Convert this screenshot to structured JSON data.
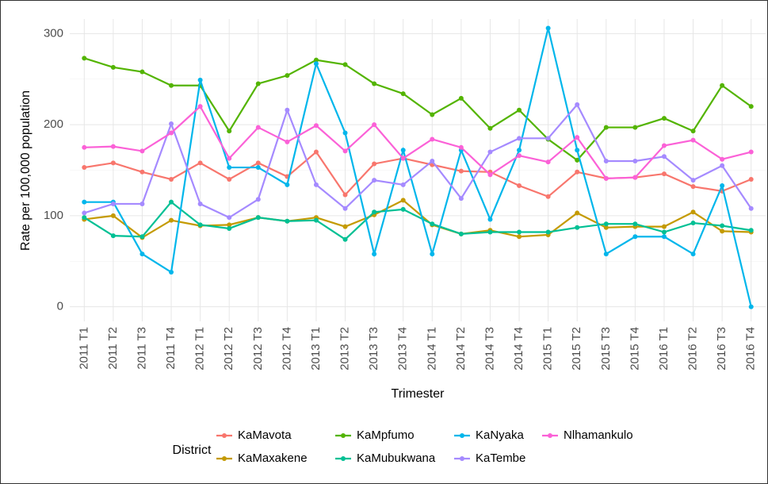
{
  "chart_data": {
    "type": "line",
    "x_label": "Trimester",
    "y_label": "Rate per 100,000 population",
    "legend_title": "District",
    "categories": [
      "2011 T1",
      "2011 T2",
      "2011 T3",
      "2011 T4",
      "2012 T1",
      "2012 T2",
      "2012 T3",
      "2012 T4",
      "2013 T1",
      "2013 T2",
      "2013 T3",
      "2013 T4",
      "2014 T1",
      "2014 T2",
      "2014 T3",
      "2014 T4",
      "2015 T1",
      "2015 T2",
      "2015 T3",
      "2015 T4",
      "2016 T1",
      "2016 T2",
      "2016 T3",
      "2016 T4"
    ],
    "ylim": [
      -16,
      316
    ],
    "yticks": [
      0,
      100,
      200,
      300
    ],
    "grid": true,
    "legend_position": "bottom",
    "series": [
      {
        "name": "KaMavota",
        "color": "#F8766D",
        "values": [
          153,
          158,
          148,
          140,
          158,
          140,
          158,
          143,
          170,
          123,
          157,
          163,
          156,
          149,
          148,
          133,
          121,
          148,
          141,
          142,
          146,
          132,
          127,
          140
        ]
      },
      {
        "name": "KaMaxakene",
        "color": "#C49A00",
        "values": [
          96,
          100,
          76,
          95,
          89,
          90,
          98,
          94,
          98,
          88,
          101,
          117,
          90,
          80,
          84,
          77,
          79,
          103,
          87,
          88,
          88,
          104,
          83,
          82
        ]
      },
      {
        "name": "KaMpfumo",
        "color": "#53B400",
        "values": [
          273,
          263,
          258,
          243,
          243,
          193,
          245,
          254,
          271,
          266,
          245,
          234,
          211,
          229,
          196,
          216,
          184,
          161,
          197,
          197,
          207,
          193,
          243,
          220
        ]
      },
      {
        "name": "KaMubukwana",
        "color": "#00C094",
        "values": [
          98,
          78,
          77,
          115,
          90,
          86,
          98,
          94,
          95,
          74,
          104,
          107,
          91,
          80,
          82,
          82,
          82,
          87,
          91,
          91,
          82,
          92,
          89,
          84
        ]
      },
      {
        "name": "KaNyaka",
        "color": "#00B6EB",
        "values": [
          115,
          115,
          58,
          38,
          249,
          153,
          153,
          134,
          267,
          191,
          58,
          172,
          58,
          172,
          96,
          172,
          306,
          172,
          58,
          77,
          77,
          58,
          133,
          0
        ]
      },
      {
        "name": "KaTembe",
        "color": "#A58AFF",
        "values": [
          103,
          113,
          113,
          201,
          113,
          98,
          118,
          216,
          134,
          108,
          139,
          134,
          160,
          119,
          170,
          185,
          185,
          222,
          160,
          160,
          165,
          139,
          155,
          108
        ]
      },
      {
        "name": "Nlhamankulo",
        "color": "#FB61D7",
        "values": [
          175,
          176,
          171,
          191,
          220,
          163,
          197,
          181,
          199,
          171,
          200,
          163,
          184,
          175,
          145,
          166,
          159,
          186,
          141,
          142,
          177,
          183,
          162,
          170
        ]
      }
    ]
  }
}
